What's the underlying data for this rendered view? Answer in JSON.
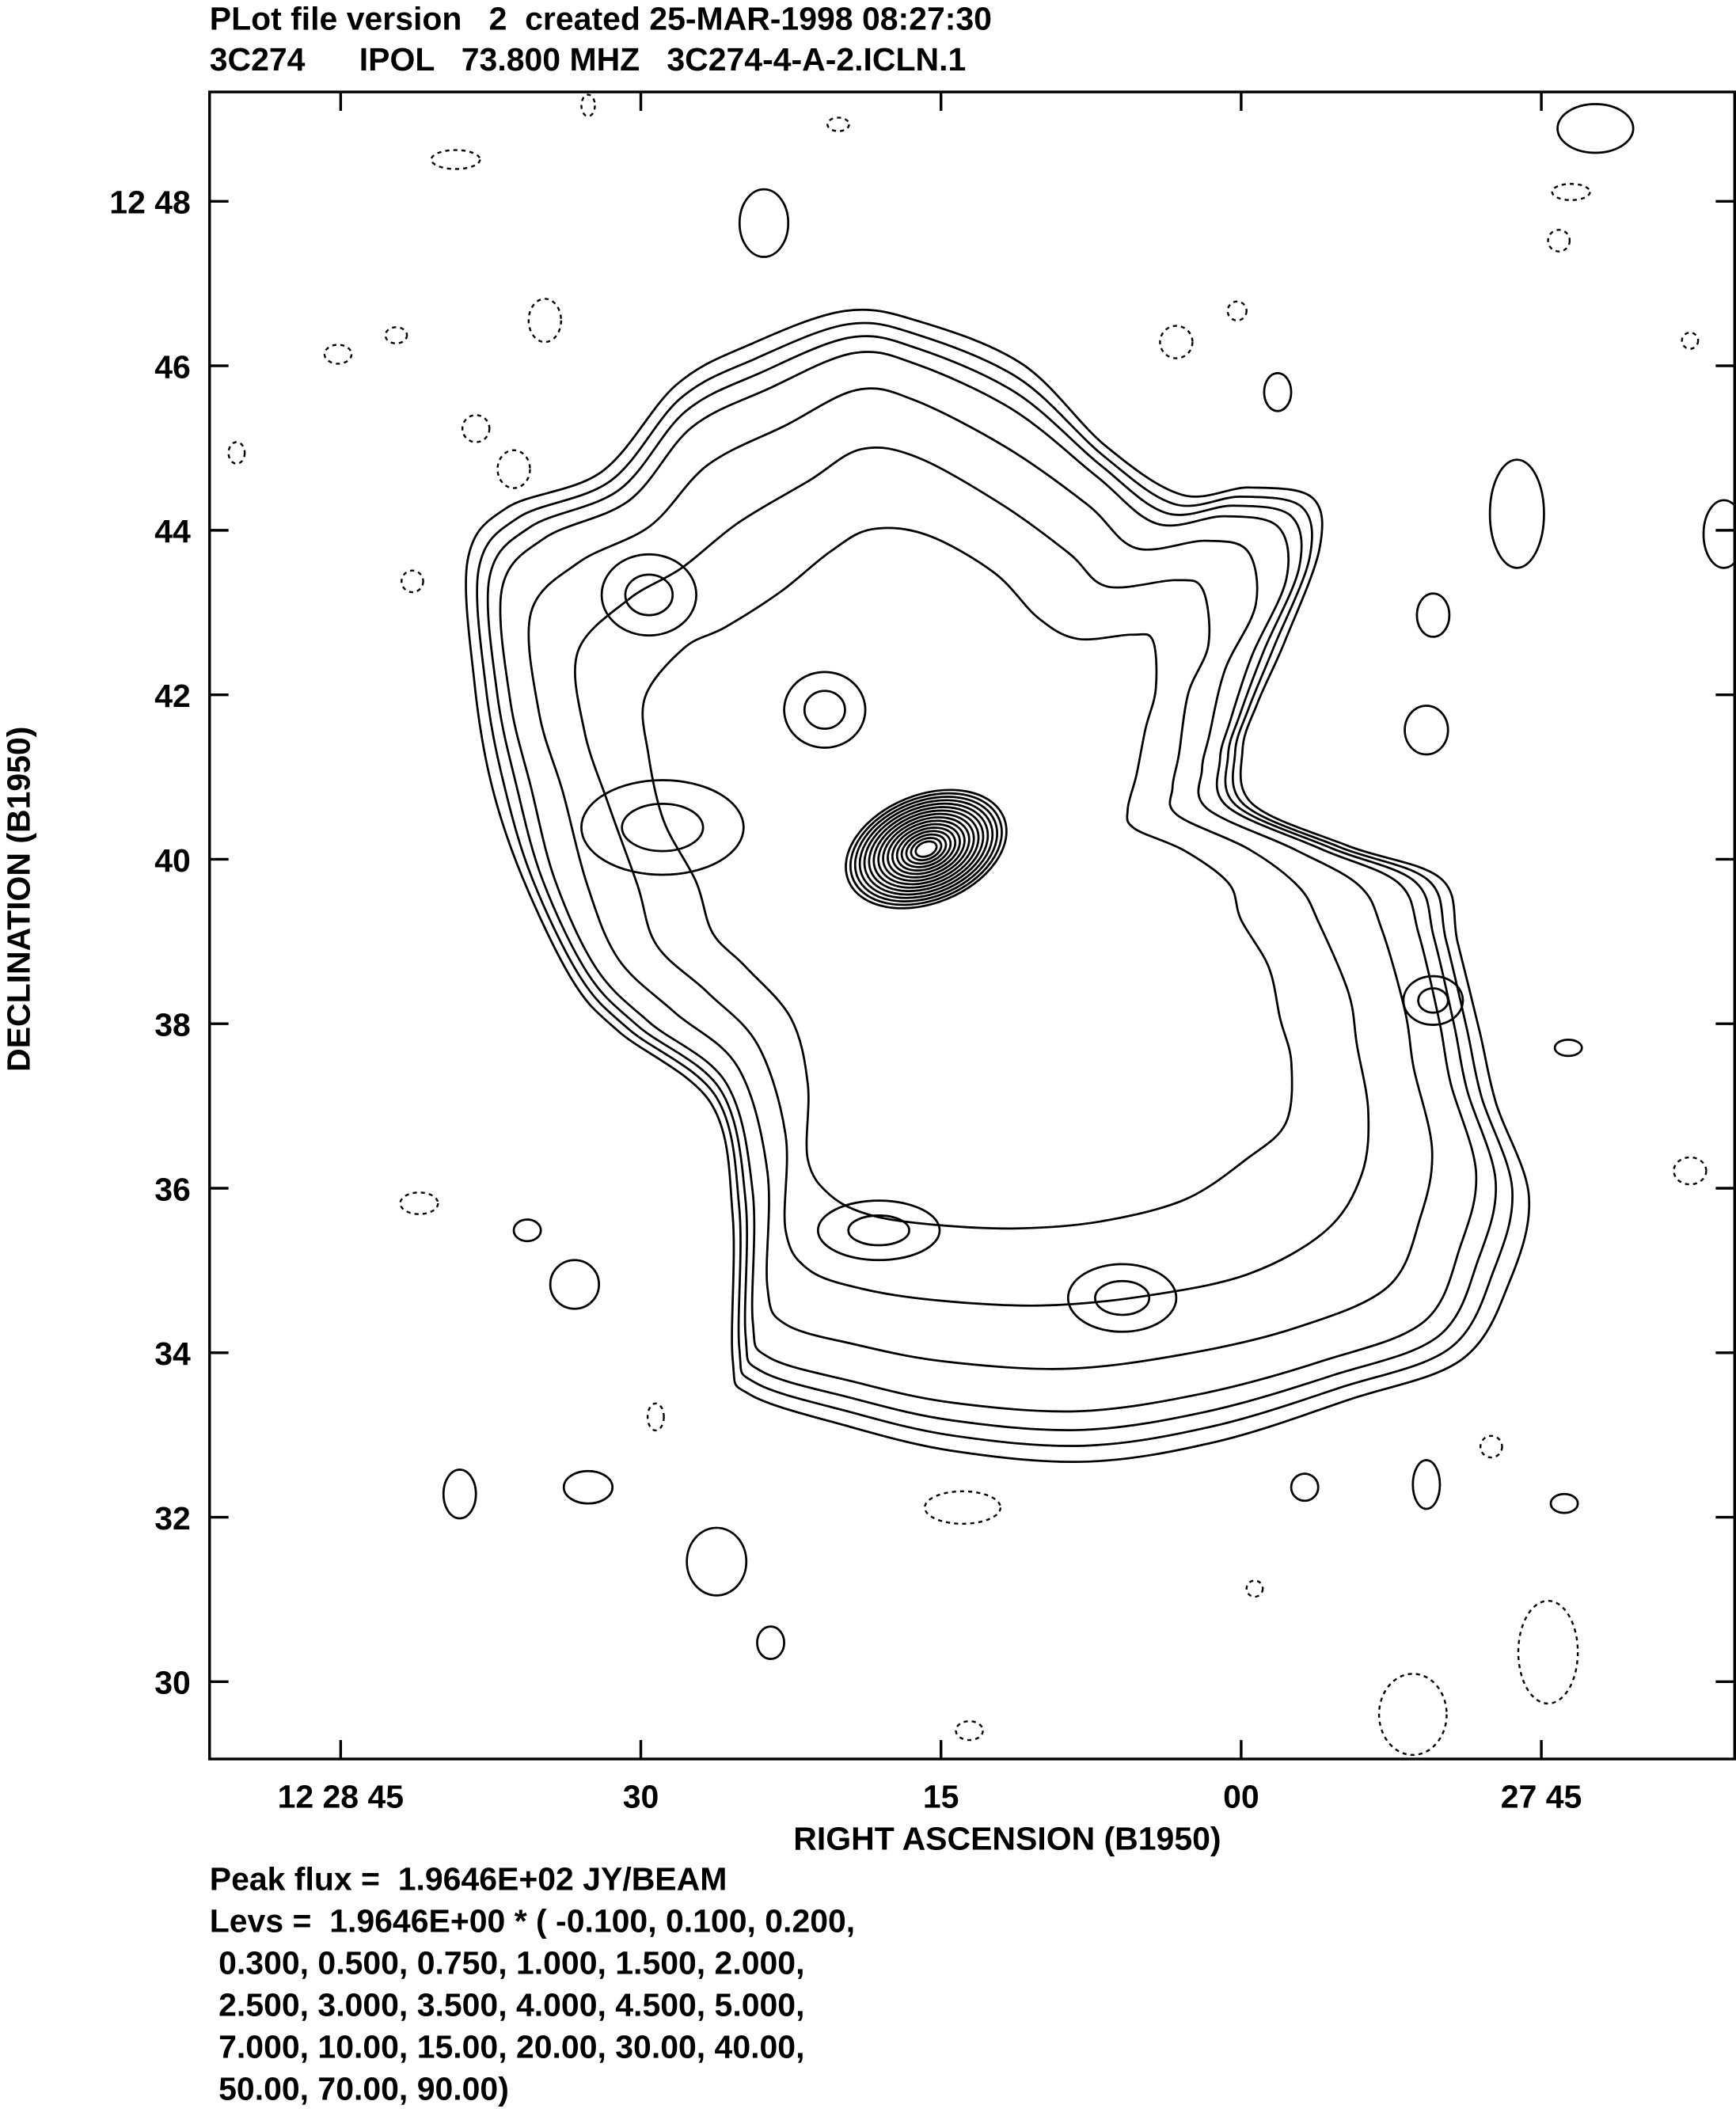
{
  "chart_data": {
    "type": "contour",
    "title": "PLot file version   2  created 25-MAR-1998 08:27:30",
    "subtitle": "3C274      IPOL   73.800 MHZ   3C274-4-A-2.ICLN.1",
    "x_label": "RIGHT ASCENSION (B1950)",
    "y_label": "DECLINATION (B1950)",
    "xlim": [
      111.55,
      35.34
    ],
    "ylim": [
      29.06,
      49.33
    ],
    "xticks": [
      {
        "value": 105,
        "label": "12 28 45"
      },
      {
        "value": 90,
        "label": "30"
      },
      {
        "value": 75,
        "label": "15"
      },
      {
        "value": 60,
        "label": "00"
      },
      {
        "value": 45,
        "label": "27 45"
      }
    ],
    "yticks": [
      {
        "value": 48,
        "label": "12 48"
      },
      46,
      44,
      42,
      40,
      38,
      36,
      34,
      32,
      30
    ],
    "annotations": [
      "Peak flux =  1.9646E+02 JY/BEAM",
      "Levs =  1.9646E+00 * ( -0.100, 0.100, 0.200,",
      " 0.300, 0.500, 0.750, 1.000, 1.500, 2.000,",
      " 2.500, 3.000, 3.500, 4.000, 4.500, 5.000,",
      " 7.000, 10.00, 15.00, 20.00, 30.00, 40.00,",
      " 50.00, 70.00, 90.00)"
    ]
  }
}
